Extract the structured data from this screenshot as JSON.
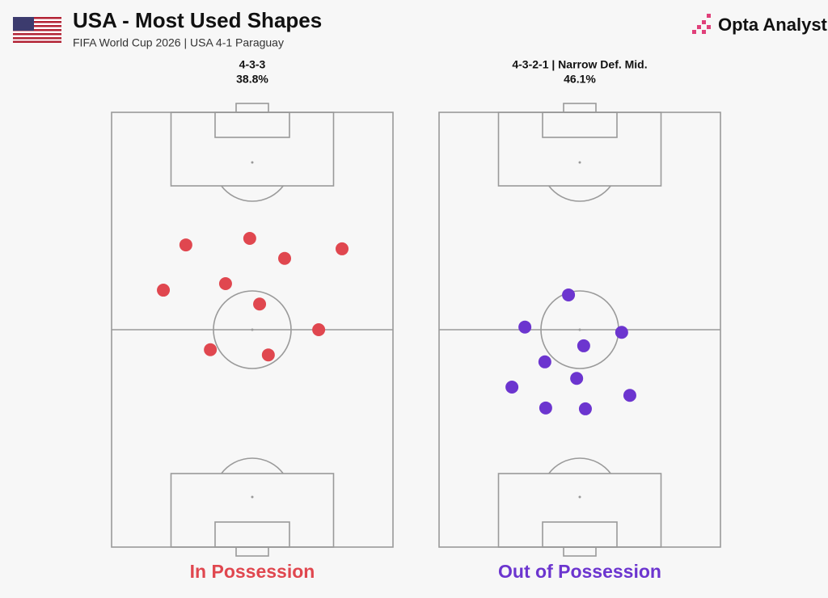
{
  "header": {
    "title": "USA - Most Used Shapes",
    "subtitle": "FIFA World Cup 2026 | USA 4-1 Paraguay",
    "brand": "Opta Analyst"
  },
  "chart_data": [
    {
      "type": "scatter",
      "formation": "4-3-3",
      "value": 38.8,
      "value_label": "38.8%",
      "caption": "In Possession",
      "color": "#e0474f",
      "xlim": [
        0,
        100
      ],
      "ylim": [
        0,
        100
      ],
      "x": [
        26.4,
        49.1,
        61.5,
        81.9,
        18.4,
        40.5,
        52.6,
        73.6,
        35.1,
        55.7
      ],
      "y": [
        69.5,
        71.0,
        66.4,
        68.6,
        59.1,
        60.6,
        55.9,
        50.0,
        45.4,
        44.2
      ]
    },
    {
      "type": "scatter",
      "formation": "4-3-2-1 | Narrow Def. Mid.",
      "value": 46.1,
      "value_label": "46.1%",
      "caption": "Out of Possession",
      "color": "#6c35cf",
      "xlim": [
        0,
        100
      ],
      "ylim": [
        0,
        100
      ],
      "x": [
        46.0,
        30.5,
        64.9,
        51.4,
        37.6,
        48.9,
        25.9,
        67.8,
        37.9,
        52.0
      ],
      "y": [
        58.0,
        50.6,
        49.4,
        46.3,
        42.6,
        38.8,
        36.8,
        34.9,
        32.0,
        31.8
      ]
    }
  ]
}
